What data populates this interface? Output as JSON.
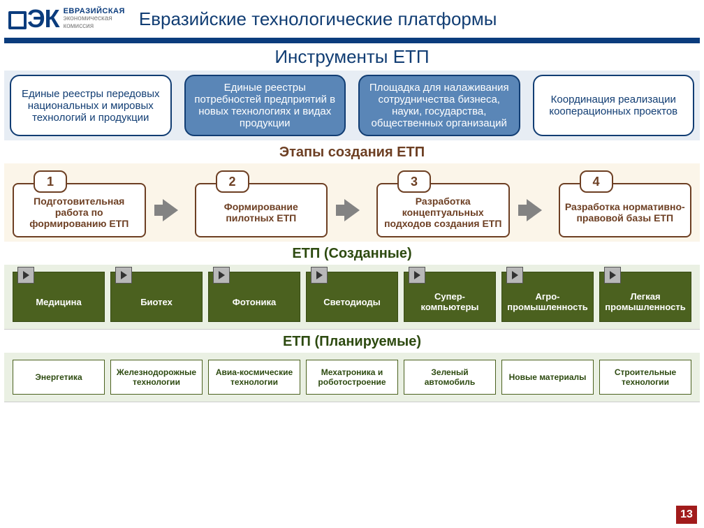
{
  "header": {
    "logo_text_top": "ЕВРАЗИЙСКАЯ",
    "logo_text_mid": "экономическая",
    "logo_text_bot": "комиссия",
    "title": "Евразийские технологические платформы"
  },
  "colors": {
    "brand_dark": "#0b3c7d",
    "title_color": "#113d73",
    "band_blue": "#e7edf4",
    "band_yellow": "#fbf5e9",
    "band_green": "#eaf0e3",
    "inst_fill": "#5a86b7",
    "inst_border": "#113d73",
    "stage_border": "#6d3f23",
    "green_box": "#4b611f",
    "page_badge": "#a11b1b"
  },
  "section1": {
    "title": "Инструменты ЕТП",
    "boxes": [
      "Единые реестры передовых национальных и мировых технологий и продукции",
      "Единые реестры потребностей предприятий в новых технологиях и видах продукции",
      "Площадка для налаживания сотрудничества бизнеса, науки, государства, общественных организаций",
      "Координация реализации кооперационных проектов"
    ],
    "filled": [
      false,
      true,
      true,
      false
    ]
  },
  "section2": {
    "title": "Этапы создания ЕТП",
    "stages": [
      {
        "num": "1",
        "label": "Подготовительная работа по формированию ЕТП"
      },
      {
        "num": "2",
        "label": "Формирование пилотных ЕТП"
      },
      {
        "num": "3",
        "label": "Разработка концептуальных подходов создания ЕТП"
      },
      {
        "num": "4",
        "label": "Разработка нормативно-правовой базы ЕТП"
      }
    ]
  },
  "section3": {
    "title": "ЕТП (Созданные)",
    "items": [
      "Медицина",
      "Биотех",
      "Фотоника",
      "Светодиоды",
      "Супер-компьютеры",
      "Агро-промышленность",
      "Легкая промышленность"
    ]
  },
  "section4": {
    "title": "ЕТП (Планируемые)",
    "items": [
      "Энергетика",
      "Железнодорожные технологии",
      "Авиа-космические технологии",
      "Мехатроника и роботостроение",
      "Зеленый автомобиль",
      "Новые материалы",
      "Строительные технологии"
    ]
  },
  "page_number": "13"
}
